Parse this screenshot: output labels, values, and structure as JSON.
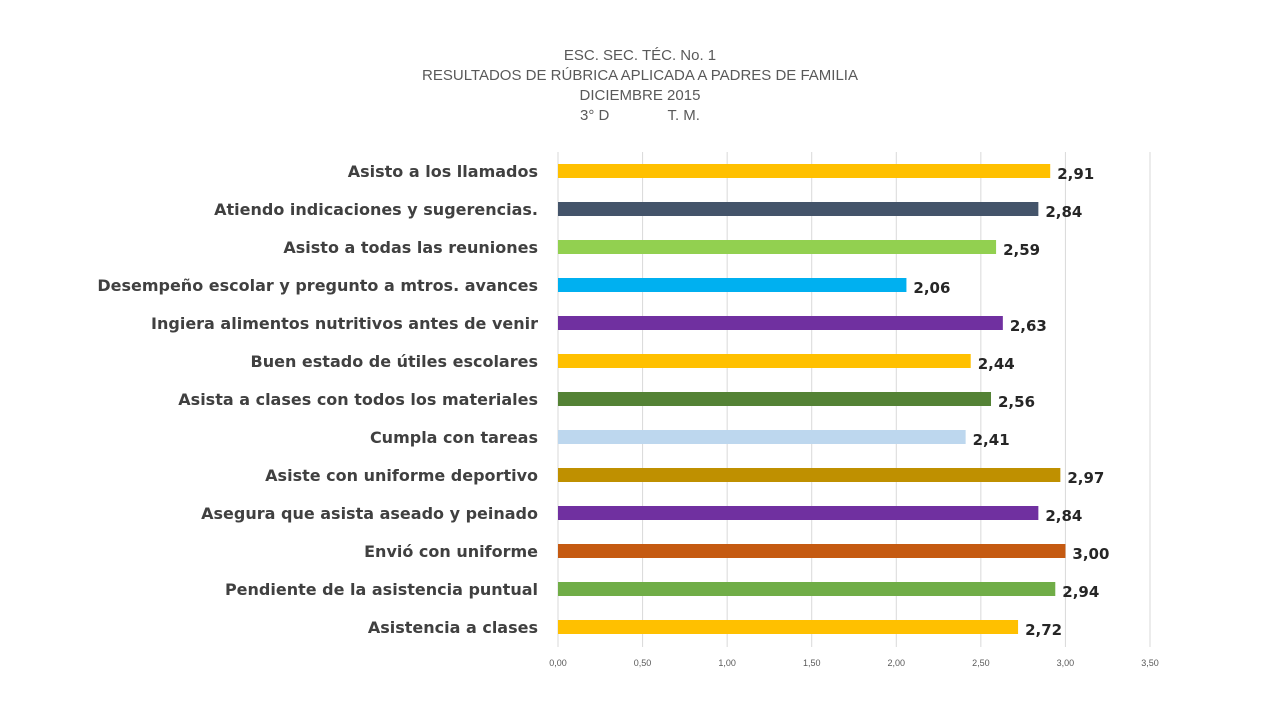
{
  "chart_data": {
    "type": "bar",
    "orientation": "horizontal",
    "title": [
      "ESC. SEC. TÉC. No. 1",
      "RESULTADOS DE RÚBRICA APLICADA A PADRES DE FAMILIA",
      "DICIEMBRE 2015",
      "3° D              T. M."
    ],
    "categories": [
      "Asisto a los llamados",
      "Atiendo indicaciones y sugerencias.",
      "Asisto a todas las reuniones",
      "Desempeño escolar y pregunto a mtros. avances",
      "Ingiera alimentos nutritivos antes de venir",
      "Buen estado de útiles escolares",
      "Asista a clases con todos los materiales",
      "Cumpla con tareas",
      "Asiste con uniforme deportivo",
      "Asegura que asista aseado y peinado",
      "Envió con uniforme",
      "Pendiente de la asistencia puntual",
      "Asistencia a clases"
    ],
    "values": [
      2.91,
      2.84,
      2.59,
      2.06,
      2.63,
      2.44,
      2.56,
      2.41,
      2.97,
      2.84,
      3.0,
      2.94,
      2.72
    ],
    "value_labels": [
      "2,91",
      "2,84",
      "2,59",
      "2,06",
      "2,63",
      "2,44",
      "2,56",
      "2,41",
      "2,97",
      "2,84",
      "3,00",
      "2,94",
      "2,72"
    ],
    "colors": [
      "#FFC000",
      "#44546A",
      "#92D050",
      "#00B0F0",
      "#7030A0",
      "#FFC000",
      "#548235",
      "#BDD7EE",
      "#BF9000",
      "#7030A0",
      "#C55A11",
      "#70AD47",
      "#FFC000"
    ],
    "xlim": [
      0,
      3.5
    ],
    "xticks": [
      "0,00",
      "0,50",
      "1,00",
      "1,50",
      "2,00",
      "2,50",
      "3,00",
      "3,50"
    ],
    "xlabel": "",
    "ylabel": "",
    "grid": true,
    "legend": "none"
  }
}
